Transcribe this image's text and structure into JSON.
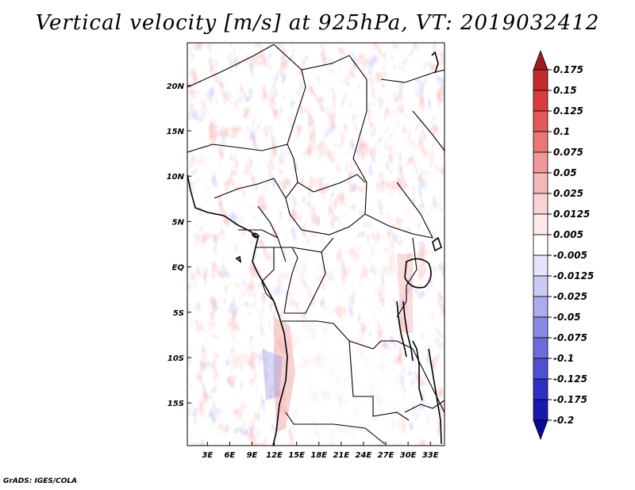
{
  "title": "Vertical velocity [m/s] at 925hPa, VT: 2019032412",
  "credit": "GrADS: IGES/COLA",
  "map": {
    "region": "Central Africa",
    "lon_labels": [
      "3E",
      "6E",
      "9E",
      "12E",
      "15E",
      "18E",
      "21E",
      "24E",
      "27E",
      "30E",
      "33E"
    ],
    "lon_values": [
      3,
      6,
      9,
      12,
      15,
      18,
      21,
      24,
      27,
      30,
      33
    ],
    "lat_labels": [
      "20N",
      "15N",
      "10N",
      "5N",
      "EQ",
      "5S",
      "10S",
      "15S"
    ],
    "lat_values": [
      20,
      15,
      10,
      5,
      0,
      -5,
      -10,
      -15
    ],
    "lon_range": [
      0.3,
      34.9
    ],
    "lat_range": [
      -19.7,
      24.7
    ]
  },
  "colorbar": {
    "levels": [
      "0.175",
      "0.15",
      "0.125",
      "0.1",
      "0.075",
      "0.05",
      "0.025",
      "0.0125",
      "0.005",
      "-0.005",
      "-0.0125",
      "-0.025",
      "-0.05",
      "-0.075",
      "-0.1",
      "-0.125",
      "-0.175",
      "-0.2"
    ],
    "colors": [
      "#9e1c1c",
      "#c42a2a",
      "#d83c3c",
      "#e25a5a",
      "#e87878",
      "#f09898",
      "#f5b8b8",
      "#f9d4d4",
      "#fce9e9",
      "#ffffff",
      "#e4e4fb",
      "#cacaf5",
      "#ababef",
      "#8a8ae6",
      "#6c6cdc",
      "#4f4fd2",
      "#3030c4",
      "#1818b0",
      "#0a0a90"
    ]
  }
}
